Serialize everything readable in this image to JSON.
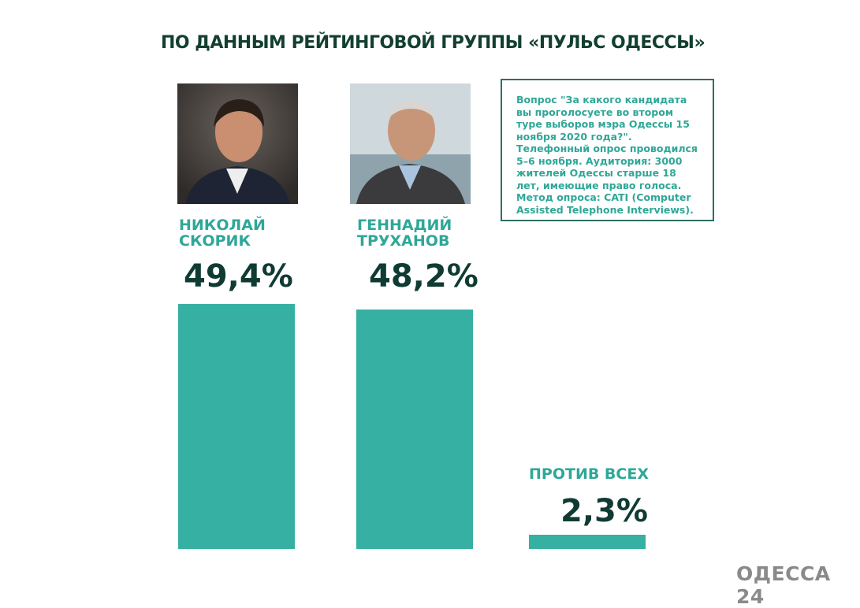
{
  "chart_data": {
    "type": "bar",
    "title": "ПО ДАННЫМ РЕЙТИНГОВОЙ ГРУППЫ «ПУЛЬС ОДЕССЫ»",
    "categories": [
      "НИКОЛАЙ СКОРИК",
      "ГЕННАДИЙ ТРУХАНОВ",
      "ПРОТИВ ВСЕХ"
    ],
    "values": [
      49.4,
      48.2,
      2.3
    ],
    "value_labels": [
      "49,4%",
      "48,2%",
      "2,3%"
    ],
    "unit": "%",
    "grid": false,
    "bar_color": "#35b0a3"
  },
  "candidates": [
    {
      "first": "НИКОЛАЙ",
      "last": "СКОРИК",
      "value": "49,4%"
    },
    {
      "first": "ГЕННАДИЙ",
      "last": "ТРУХАНОВ",
      "value": "48,2%"
    }
  ],
  "against": {
    "label": "ПРОТИВ ВСЕХ",
    "value": "2,3%"
  },
  "note": "Вопрос \"За какого кандидата вы проголосуете во втором туре выборов мэра Одессы 15 ноября 2020 года?\". Телефонный опрос проводился 5–6 ноября. Аудитория: 3000 жителей Одессы старше 18 лет, имеющие право голоса. Метод опроса: CATI (Computer Assisted Telephone Interviews).",
  "logo": "ОДЕССА 24",
  "colors": {
    "title": "#123f30",
    "accent": "#2fa797",
    "value": "#103b33",
    "logo": "#8a8a8a"
  }
}
